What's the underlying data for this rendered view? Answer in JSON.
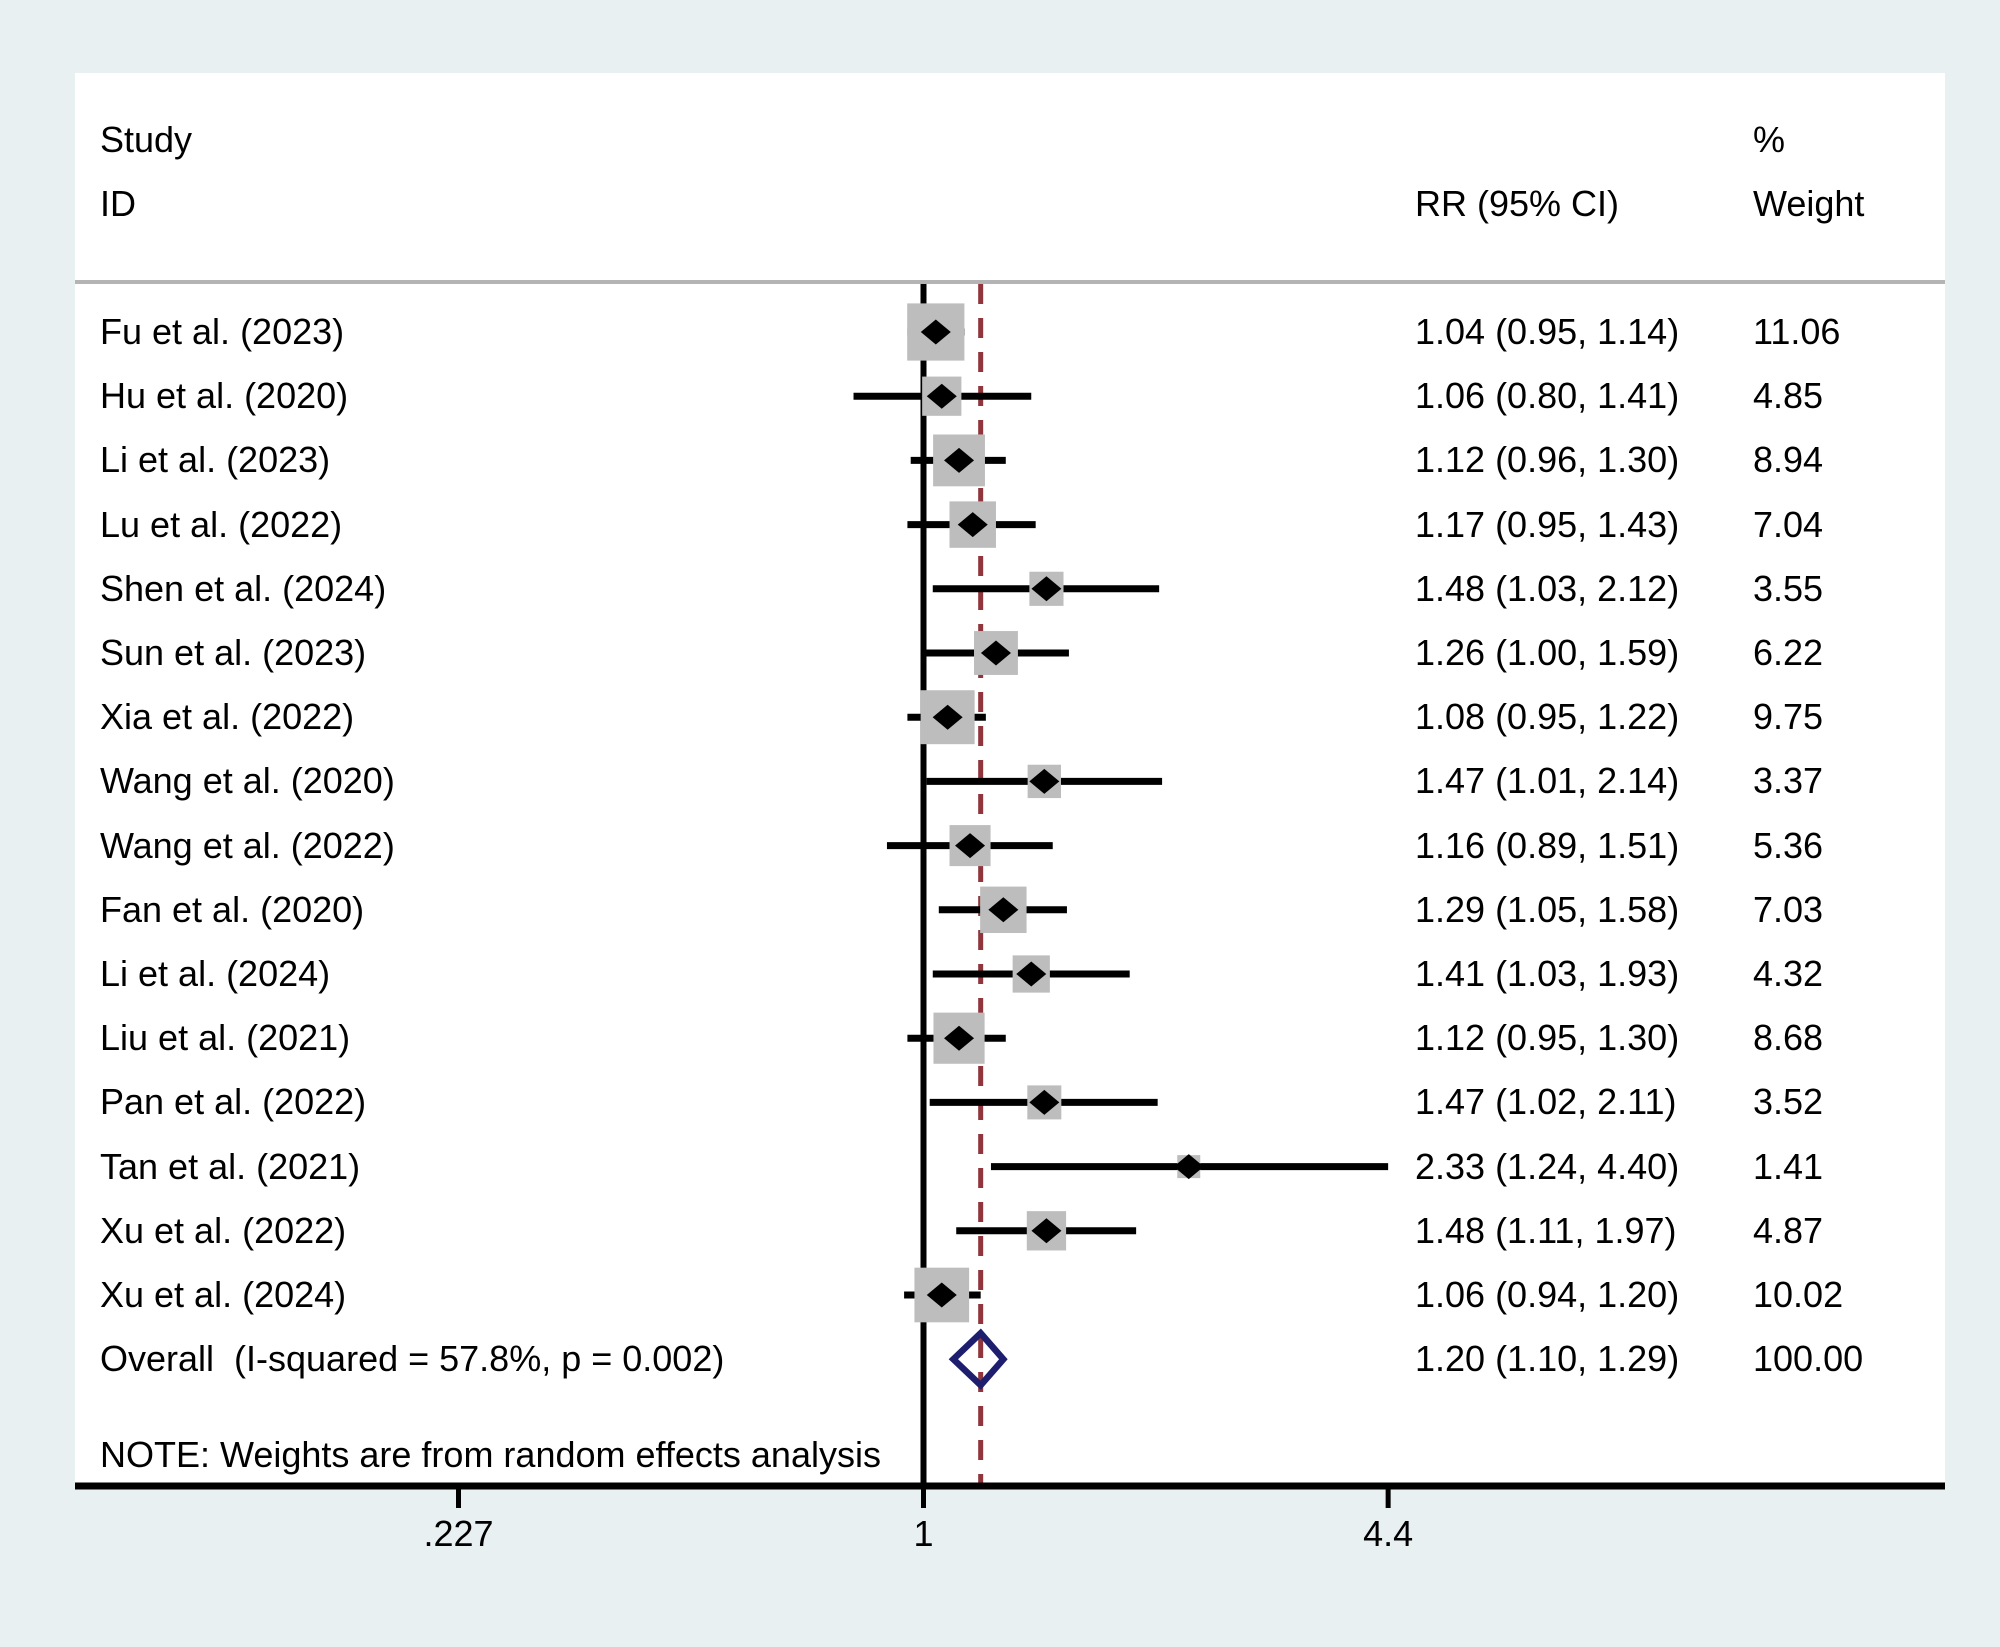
{
  "chart_data": {
    "type": "forest",
    "title": "",
    "columns": {
      "study_line1": "Study",
      "study_line2": "ID",
      "rr_header": "RR (95% CI)",
      "weight_line1": "%",
      "weight_line2": "Weight"
    },
    "studies": [
      {
        "label": "Fu et al. (2023)",
        "rr": 1.04,
        "ci_low": 0.95,
        "ci_high": 1.14,
        "rr_text": "1.04 (0.95, 1.14)",
        "weight": 11.06,
        "weight_text": "11.06"
      },
      {
        "label": "Hu et al. (2020)",
        "rr": 1.06,
        "ci_low": 0.8,
        "ci_high": 1.41,
        "rr_text": "1.06 (0.80, 1.41)",
        "weight": 4.85,
        "weight_text": "4.85"
      },
      {
        "label": "Li et al. (2023)",
        "rr": 1.12,
        "ci_low": 0.96,
        "ci_high": 1.3,
        "rr_text": "1.12 (0.96, 1.30)",
        "weight": 8.94,
        "weight_text": "8.94"
      },
      {
        "label": "Lu et al. (2022)",
        "rr": 1.17,
        "ci_low": 0.95,
        "ci_high": 1.43,
        "rr_text": "1.17 (0.95, 1.43)",
        "weight": 7.04,
        "weight_text": "7.04"
      },
      {
        "label": "Shen et al. (2024)",
        "rr": 1.48,
        "ci_low": 1.03,
        "ci_high": 2.12,
        "rr_text": "1.48 (1.03, 2.12)",
        "weight": 3.55,
        "weight_text": "3.55"
      },
      {
        "label": "Sun et al. (2023)",
        "rr": 1.26,
        "ci_low": 1.0,
        "ci_high": 1.59,
        "rr_text": "1.26 (1.00, 1.59)",
        "weight": 6.22,
        "weight_text": "6.22"
      },
      {
        "label": "Xia et al. (2022)",
        "rr": 1.08,
        "ci_low": 0.95,
        "ci_high": 1.22,
        "rr_text": "1.08 (0.95, 1.22)",
        "weight": 9.75,
        "weight_text": "9.75"
      },
      {
        "label": "Wang et al. (2020)",
        "rr": 1.47,
        "ci_low": 1.01,
        "ci_high": 2.14,
        "rr_text": "1.47 (1.01, 2.14)",
        "weight": 3.37,
        "weight_text": "3.37"
      },
      {
        "label": "Wang et al. (2022)",
        "rr": 1.16,
        "ci_low": 0.89,
        "ci_high": 1.51,
        "rr_text": "1.16 (0.89, 1.51)",
        "weight": 5.36,
        "weight_text": "5.36"
      },
      {
        "label": "Fan et al. (2020)",
        "rr": 1.29,
        "ci_low": 1.05,
        "ci_high": 1.58,
        "rr_text": "1.29 (1.05, 1.58)",
        "weight": 7.03,
        "weight_text": "7.03"
      },
      {
        "label": "Li et al. (2024)",
        "rr": 1.41,
        "ci_low": 1.03,
        "ci_high": 1.93,
        "rr_text": "1.41 (1.03, 1.93)",
        "weight": 4.32,
        "weight_text": "4.32"
      },
      {
        "label": "Liu et al. (2021)",
        "rr": 1.12,
        "ci_low": 0.95,
        "ci_high": 1.3,
        "rr_text": "1.12 (0.95, 1.30)",
        "weight": 8.68,
        "weight_text": "8.68"
      },
      {
        "label": "Pan et al. (2022)",
        "rr": 1.47,
        "ci_low": 1.02,
        "ci_high": 2.11,
        "rr_text": "1.47 (1.02, 2.11)",
        "weight": 3.52,
        "weight_text": "3.52"
      },
      {
        "label": "Tan et al. (2021)",
        "rr": 2.33,
        "ci_low": 1.24,
        "ci_high": 4.4,
        "rr_text": "2.33 (1.24, 4.40)",
        "weight": 1.41,
        "weight_text": "1.41"
      },
      {
        "label": "Xu et al. (2022)",
        "rr": 1.48,
        "ci_low": 1.11,
        "ci_high": 1.97,
        "rr_text": "1.48 (1.11, 1.97)",
        "weight": 4.87,
        "weight_text": "4.87"
      },
      {
        "label": "Xu et al. (2024)",
        "rr": 1.06,
        "ci_low": 0.94,
        "ci_high": 1.2,
        "rr_text": "1.06 (0.94, 1.20)",
        "weight": 10.02,
        "weight_text": "10.02"
      }
    ],
    "overall": {
      "label": "Overall  (I-squared = 57.8%, p = 0.002)",
      "rr": 1.2,
      "ci_low": 1.1,
      "ci_high": 1.29,
      "rr_text": "1.20 (1.10, 1.29)",
      "weight_text": "100.00"
    },
    "note": "NOTE: Weights are from random effects analysis",
    "axis": {
      "scale": "log",
      "ticks": [
        {
          "value": 0.227,
          "label": ".227"
        },
        {
          "value": 1,
          "label": "1"
        },
        {
          "value": 4.4,
          "label": "4.4"
        }
      ],
      "reference_line": 1,
      "overall_dashed_line_at": 1.2
    },
    "legend_position": "none",
    "grid": false,
    "colors": {
      "background": "#e9f0f2",
      "panel": "#ffffff",
      "divider": "#b4b4b4",
      "box": "#bdbdbd",
      "marker": "#000000",
      "ci_line": "#000000",
      "reference_line": "#000000",
      "overall_dashed_line": "#90353b",
      "diamond_outline": "#1e1e6e",
      "axis_line": "#000000",
      "text": "#000000"
    }
  }
}
